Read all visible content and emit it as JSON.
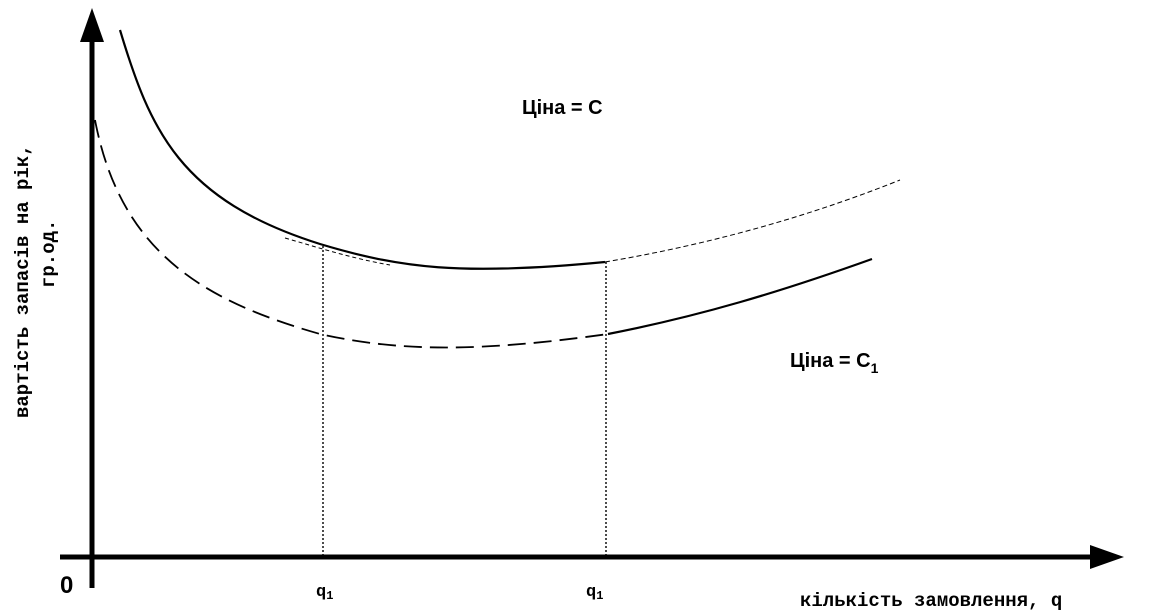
{
  "origin_label": "0",
  "x_axis_label": "кількість замовлення, q",
  "y_axis_label_line1": "вартість запасів на рік,",
  "y_axis_label_line2": "гр.од.",
  "tick_labels": [
    {
      "base": "q",
      "sub": "1"
    },
    {
      "base": "q",
      "sub": "1"
    }
  ],
  "curve_labels": [
    {
      "text": "Ціна = С",
      "sub": ""
    },
    {
      "text": "Ціна = С",
      "sub": "1"
    }
  ]
}
